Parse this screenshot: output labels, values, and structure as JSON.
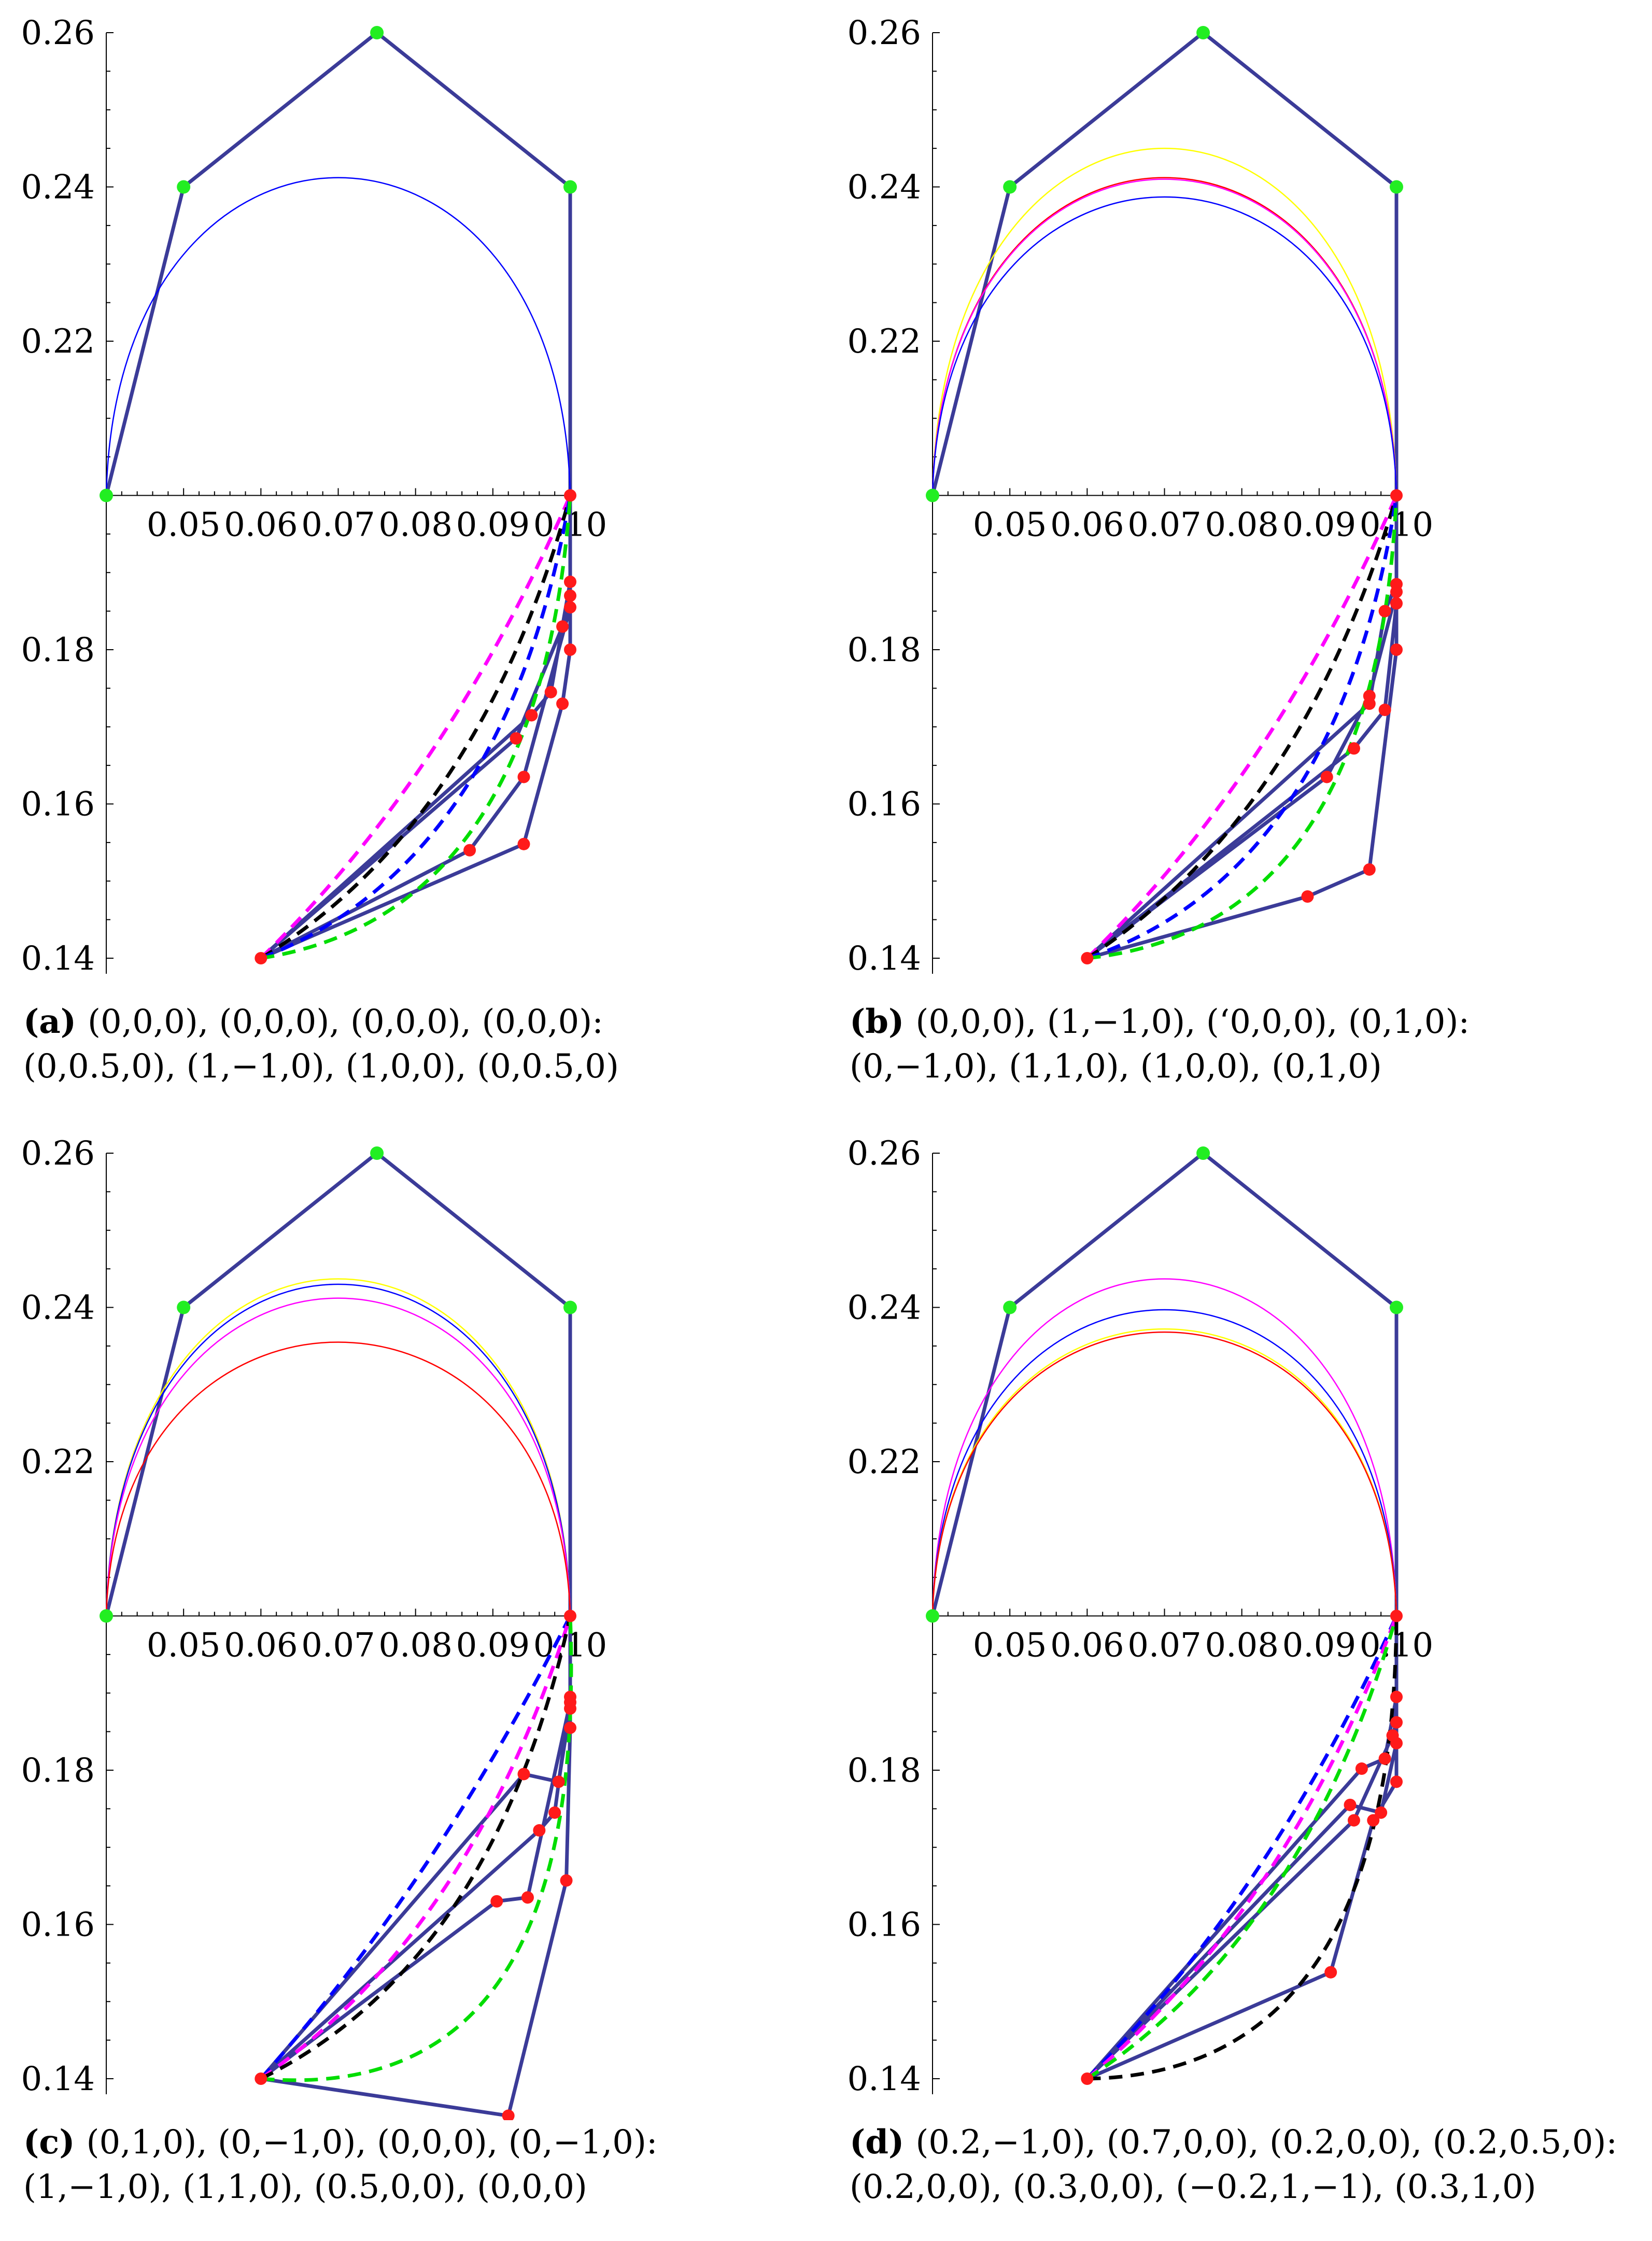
{
  "chart_data": [
    {
      "id": "a",
      "type": "line",
      "caption_label": "(a)",
      "caption_line1": "(0,0,0), (0,0,0), (0,0,0), (0,0,0):",
      "caption_line2": "(0,0.5,0), (1,−1,0), (1,0,0), (0,0.5,0)",
      "xlim": [
        0.04,
        0.1
      ],
      "ylim": [
        0.14,
        0.26
      ],
      "axis_cross_y": 0.2,
      "x_ticks": [
        "0.05",
        "0.06",
        "0.07",
        "0.08",
        "0.09",
        "0.10"
      ],
      "y_ticks": [
        "0.14",
        "0.16",
        "0.18",
        "0.22",
        "0.24",
        "0.26"
      ],
      "top_control_polygon": [
        [
          0.04,
          0.2
        ],
        [
          0.05,
          0.24
        ],
        [
          0.075,
          0.26
        ],
        [
          0.1,
          0.24
        ],
        [
          0.1,
          0.2
        ]
      ],
      "top_curves": [
        {
          "color": "#0000ff",
          "peak": 0.2412
        }
      ],
      "bottom_polygons": [
        [
          [
            0.06,
            0.14
          ],
          [
            0.087,
            0.154
          ],
          [
            0.094,
            0.1635
          ],
          [
            0.1,
            0.1855
          ],
          [
            0.1,
            0.2
          ]
        ],
        [
          [
            0.06,
            0.14
          ],
          [
            0.094,
            0.1548
          ],
          [
            0.099,
            0.173
          ],
          [
            0.1,
            0.18
          ],
          [
            0.1,
            0.2
          ]
        ],
        [
          [
            0.06,
            0.14
          ],
          [
            0.095,
            0.1715
          ],
          [
            0.0975,
            0.1745
          ],
          [
            0.1,
            0.1888
          ],
          [
            0.1,
            0.2
          ]
        ],
        [
          [
            0.06,
            0.14
          ],
          [
            0.093,
            0.1685
          ],
          [
            0.099,
            0.183
          ],
          [
            0.1,
            0.187
          ],
          [
            0.1,
            0.2
          ]
        ]
      ],
      "bottom_dashed": [
        {
          "color": "#ff00ff",
          "bend": 0.15
        },
        {
          "color": "#000000",
          "bend": 0.3
        },
        {
          "color": "#0000ff",
          "bend": 0.42
        },
        {
          "color": "#00dd00",
          "bend": 0.58
        }
      ]
    },
    {
      "id": "b",
      "type": "line",
      "caption_label": "(b)",
      "caption_line1": "(0,0,0), (1,−1,0), (‘0,0,0), (0,1,0):",
      "caption_line2": "(0,−1,0), (1,1,0), (1,0,0), (0,1,0)",
      "xlim": [
        0.04,
        0.1
      ],
      "ylim": [
        0.14,
        0.26
      ],
      "axis_cross_y": 0.2,
      "x_ticks": [
        "0.05",
        "0.06",
        "0.07",
        "0.08",
        "0.09",
        "0.10"
      ],
      "y_ticks": [
        "0.14",
        "0.16",
        "0.18",
        "0.22",
        "0.24",
        "0.26"
      ],
      "top_control_polygon": [
        [
          0.04,
          0.2
        ],
        [
          0.05,
          0.24
        ],
        [
          0.075,
          0.26
        ],
        [
          0.1,
          0.24
        ],
        [
          0.1,
          0.2
        ]
      ],
      "top_curves": [
        {
          "color": "#ffff00",
          "peak": 0.245
        },
        {
          "color": "#ff0000",
          "peak": 0.2412
        },
        {
          "color": "#ff00ff",
          "peak": 0.241
        },
        {
          "color": "#0000ff",
          "peak": 0.2387
        }
      ],
      "bottom_polygons": [
        [
          [
            0.06,
            0.14
          ],
          [
            0.0885,
            0.148
          ],
          [
            0.0965,
            0.1515
          ],
          [
            0.1,
            0.18
          ],
          [
            0.1,
            0.2
          ]
        ],
        [
          [
            0.06,
            0.14
          ],
          [
            0.091,
            0.1635
          ],
          [
            0.0965,
            0.174
          ],
          [
            0.1,
            0.1875
          ],
          [
            0.1,
            0.2
          ]
        ],
        [
          [
            0.06,
            0.14
          ],
          [
            0.0945,
            0.1672
          ],
          [
            0.0985,
            0.1722
          ],
          [
            0.1,
            0.186
          ],
          [
            0.1,
            0.2
          ]
        ],
        [
          [
            0.06,
            0.14
          ],
          [
            0.0965,
            0.173
          ],
          [
            0.0985,
            0.185
          ],
          [
            0.1,
            0.1885
          ],
          [
            0.1,
            0.2
          ]
        ]
      ],
      "bottom_dashed": [
        {
          "color": "#ff00ff",
          "bend": 0.15
        },
        {
          "color": "#000000",
          "bend": 0.28
        },
        {
          "color": "#0000ff",
          "bend": 0.45
        },
        {
          "color": "#00dd00",
          "bend": 0.62
        }
      ]
    },
    {
      "id": "c",
      "type": "line",
      "caption_label": "(c)",
      "caption_line1": "(0,1,0), (0,−1,0), (0,0,0), (0,−1,0):",
      "caption_line2": "(1,−1,0), (1,1,0), (0.5,0,0), (0,0,0)",
      "xlim": [
        0.04,
        0.1
      ],
      "ylim": [
        0.14,
        0.26
      ],
      "axis_cross_y": 0.2,
      "x_ticks": [
        "0.05",
        "0.06",
        "0.07",
        "0.08",
        "0.09",
        "0.10"
      ],
      "y_ticks": [
        "0.14",
        "0.16",
        "0.18",
        "0.22",
        "0.24",
        "0.26"
      ],
      "top_control_polygon": [
        [
          0.04,
          0.2
        ],
        [
          0.05,
          0.24
        ],
        [
          0.075,
          0.26
        ],
        [
          0.1,
          0.24
        ],
        [
          0.1,
          0.2
        ]
      ],
      "top_curves": [
        {
          "color": "#ffff00",
          "peak": 0.2437
        },
        {
          "color": "#0000ff",
          "peak": 0.243
        },
        {
          "color": "#ff00ff",
          "peak": 0.2412
        },
        {
          "color": "#ff0000",
          "peak": 0.2355
        }
      ],
      "bottom_polygons": [
        [
          [
            0.06,
            0.14
          ],
          [
            0.092,
            0.1352
          ],
          [
            0.0995,
            0.1657
          ],
          [
            0.1,
            0.1855
          ],
          [
            0.1,
            0.2
          ]
        ],
        [
          [
            0.06,
            0.14
          ],
          [
            0.094,
            0.1795
          ],
          [
            0.0985,
            0.1785
          ],
          [
            0.1,
            0.188
          ],
          [
            0.1,
            0.2
          ]
        ],
        [
          [
            0.06,
            0.14
          ],
          [
            0.0905,
            0.163
          ],
          [
            0.0945,
            0.1635
          ],
          [
            0.1,
            0.1888
          ],
          [
            0.1,
            0.2
          ]
        ],
        [
          [
            0.06,
            0.14
          ],
          [
            0.096,
            0.1722
          ],
          [
            0.098,
            0.1745
          ],
          [
            0.1,
            0.1895
          ],
          [
            0.1,
            0.2
          ]
        ]
      ],
      "bottom_dashed": [
        {
          "color": "#0000ff",
          "bend": 0.1
        },
        {
          "color": "#ff00ff",
          "bend": 0.26
        },
        {
          "color": "#000000",
          "bend": 0.36
        },
        {
          "color": "#00dd00",
          "bend": 0.8
        }
      ]
    },
    {
      "id": "d",
      "type": "line",
      "caption_label": "(d)",
      "caption_line1": "(0.2,−1,0), (0.7,0,0), (0.2,0,0), (0.2,0.5,0):",
      "caption_line2": "(0.2,0,0), (0.3,0,0), (−0.2,1,−1), (0.3,1,0)",
      "xlim": [
        0.04,
        0.1
      ],
      "ylim": [
        0.14,
        0.26
      ],
      "axis_cross_y": 0.2,
      "x_ticks": [
        "0.05",
        "0.06",
        "0.07",
        "0.08",
        "0.09",
        "0.10"
      ],
      "y_ticks": [
        "0.14",
        "0.16",
        "0.18",
        "0.22",
        "0.24",
        "0.26"
      ],
      "top_control_polygon": [
        [
          0.04,
          0.2
        ],
        [
          0.05,
          0.24
        ],
        [
          0.075,
          0.26
        ],
        [
          0.1,
          0.24
        ],
        [
          0.1,
          0.2
        ]
      ],
      "top_curves": [
        {
          "color": "#ff00ff",
          "peak": 0.2437
        },
        {
          "color": "#0000ff",
          "peak": 0.2397
        },
        {
          "color": "#ffff00",
          "peak": 0.2372
        },
        {
          "color": "#ff0000",
          "peak": 0.2368
        }
      ],
      "bottom_polygons": [
        [
          [
            0.06,
            0.14
          ],
          [
            0.0915,
            0.1538
          ],
          [
            0.097,
            0.1735
          ],
          [
            0.1,
            0.1785
          ],
          [
            0.1,
            0.2
          ]
        ],
        [
          [
            0.06,
            0.14
          ],
          [
            0.094,
            0.1755
          ],
          [
            0.098,
            0.1745
          ],
          [
            0.1,
            0.1835
          ],
          [
            0.1,
            0.2
          ]
        ],
        [
          [
            0.06,
            0.14
          ],
          [
            0.0955,
            0.1802
          ],
          [
            0.0985,
            0.1815
          ],
          [
            0.1,
            0.1895
          ],
          [
            0.1,
            0.2
          ]
        ],
        [
          [
            0.06,
            0.14
          ],
          [
            0.0945,
            0.1735
          ],
          [
            0.0995,
            0.1845
          ],
          [
            0.1,
            0.1862
          ],
          [
            0.1,
            0.2
          ]
        ]
      ],
      "bottom_dashed": [
        {
          "color": "#0000ff",
          "bend": 0.14
        },
        {
          "color": "#ff00ff",
          "bend": 0.2
        },
        {
          "color": "#00dd00",
          "bend": 0.28
        },
        {
          "color": "#000000",
          "bend": 0.7
        }
      ]
    }
  ]
}
